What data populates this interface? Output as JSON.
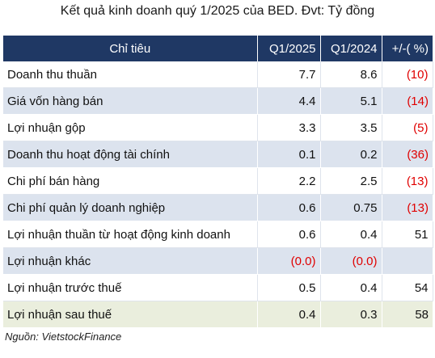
{
  "title": "Kết quả kinh doanh quý 1/2025 của BED. Đvt: Tỷ đồng",
  "table": {
    "headers": [
      "Chỉ tiêu",
      "Q1/2025",
      "Q1/2024",
      "+/-( %)"
    ],
    "rows": [
      {
        "label": "Doanh thu thuần",
        "q1_2025": "7.7",
        "q1_2024": "8.6",
        "change": "(10)"
      },
      {
        "label": "Giá vốn hàng bán",
        "q1_2025": "4.4",
        "q1_2024": "5.1",
        "change": "(14)"
      },
      {
        "label": "Lợi nhuận gộp",
        "q1_2025": "3.3",
        "q1_2024": "3.5",
        "change": "(5)"
      },
      {
        "label": "Doanh thu hoạt động tài chính",
        "q1_2025": "0.1",
        "q1_2024": "0.2",
        "change": "(36)"
      },
      {
        "label": "Chi phí bán hàng",
        "q1_2025": "2.2",
        "q1_2024": "2.5",
        "change": "(13)"
      },
      {
        "label": "Chi phí quản lý doanh nghiệp",
        "q1_2025": "0.6",
        "q1_2024": "0.75",
        "change": "(13)"
      },
      {
        "label": "Lợi nhuận thuần từ hoạt động kinh doanh",
        "q1_2025": "0.6",
        "q1_2024": "0.4",
        "change": "51"
      },
      {
        "label": "Lợi nhuận khác",
        "q1_2025": "(0.0)",
        "q1_2024": "(0.0)",
        "change": ""
      },
      {
        "label": "Lợi nhuận trước thuế",
        "q1_2025": "0.5",
        "q1_2024": "0.4",
        "change": "54"
      },
      {
        "label": "Lợi nhuận sau thuế",
        "q1_2025": "0.4",
        "q1_2024": "0.3",
        "change": "58"
      }
    ]
  },
  "source": "Nguồn: VietstockFinance",
  "colors": {
    "header_bg": "#1f3864",
    "band_bg": "#dce3ee",
    "final_bg": "#eaeedd",
    "negative": "#e00000"
  }
}
